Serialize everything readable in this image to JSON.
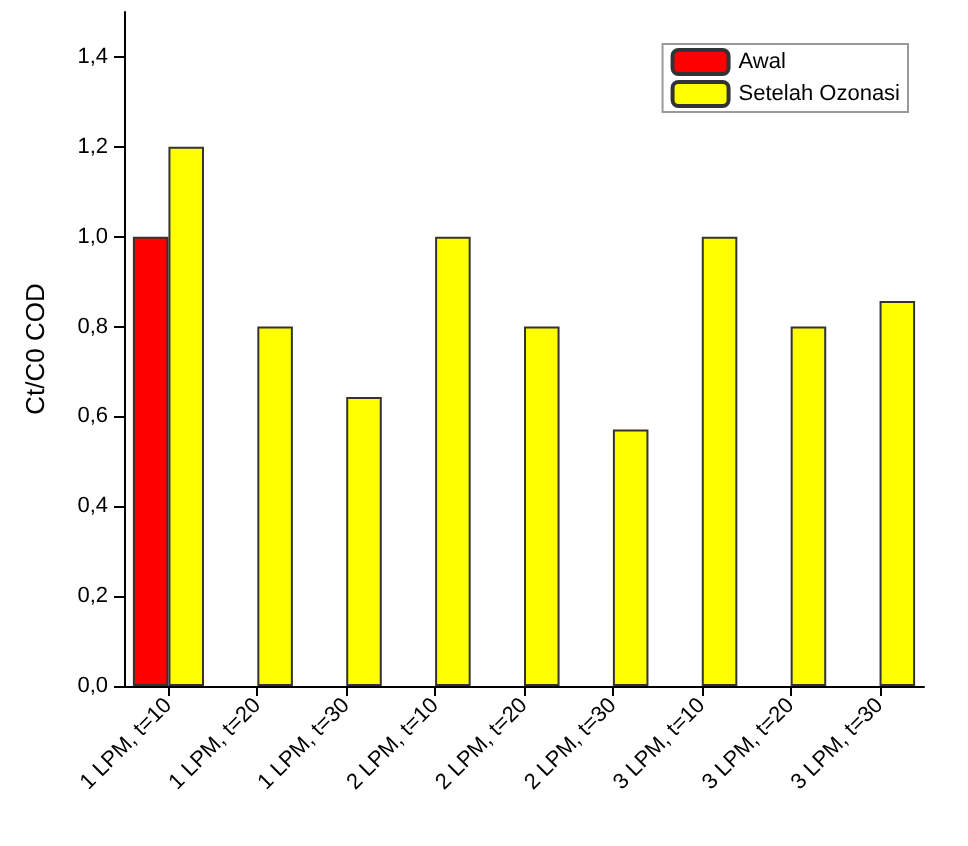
{
  "chart_data": {
    "type": "bar",
    "ylabel": "Ct/C0 COD",
    "categories": [
      "1 LPM, t=10",
      "1 LPM, t=20",
      "1 LPM, t=30",
      "2 LPM, t=10",
      "2 LPM, t=20",
      "2 LPM, t=30",
      "3 LPM, t=10",
      "3 LPM, t=20",
      "3 LPM, t=30"
    ],
    "series": [
      {
        "name": "Awal",
        "color": "#ff0000",
        "values": [
          1.0,
          null,
          null,
          null,
          null,
          null,
          null,
          null,
          null
        ]
      },
      {
        "name": "Setelah Ozonasi",
        "color": "#ffff00",
        "values": [
          1.2,
          0.8,
          0.643,
          1.0,
          0.8,
          0.571,
          1.0,
          0.8,
          0.857
        ]
      }
    ],
    "ylim": [
      0,
      1.5
    ],
    "yticks": [
      {
        "value": 0,
        "label": "0,0"
      },
      {
        "value": 0.2,
        "label": "0,2"
      },
      {
        "value": 0.4,
        "label": "0,4"
      },
      {
        "value": 0.6,
        "label": "0,6"
      },
      {
        "value": 0.8,
        "label": "0,8"
      },
      {
        "value": 1.0,
        "label": "1,0"
      },
      {
        "value": 1.2,
        "label": "1,2"
      },
      {
        "value": 1.4,
        "label": "1,4"
      }
    ],
    "grid": false,
    "legend": "top right"
  }
}
